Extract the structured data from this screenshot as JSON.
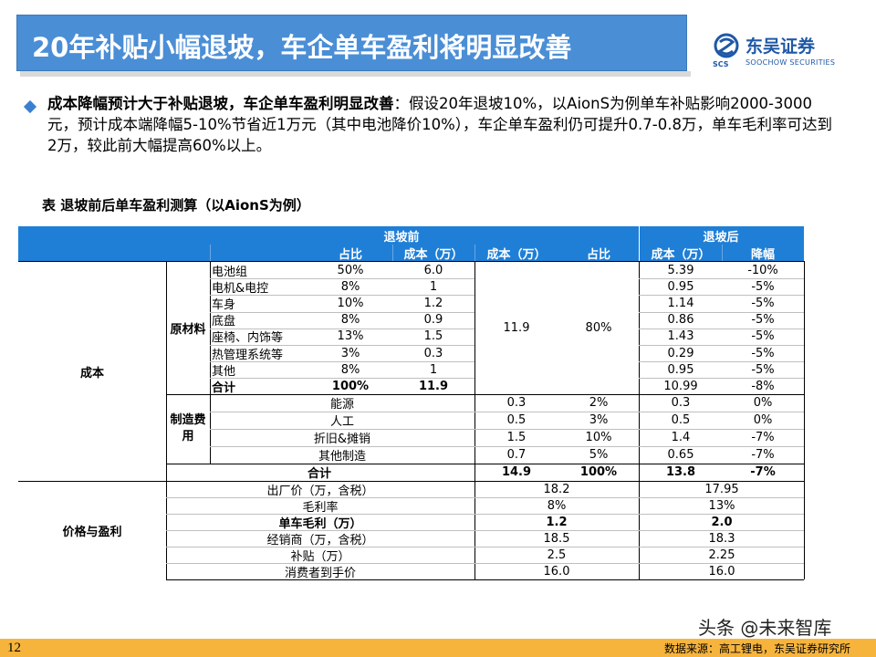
{
  "title": "20年补贴小幅退坡，车企单车盈利将明显改善",
  "logo": {
    "cn": "东吴证券",
    "en": "SOOCHOW SECURITIES",
    "abbr": "SCS"
  },
  "paragraph": {
    "bold": "成本降幅预计大于补贴退坡，车企单车盈利明显改善",
    "text": "：假设20年退坡10%，以AionS为例单车补贴影响2000-3000元，预计成本端降幅5-10%节省近1万元（其中电池降价10%），车企单车盈利仍可提升0.7-0.8万，单车毛利率可达到2万，较此前大幅提高60%以上。"
  },
  "table_caption": "表  退坡前后单车盈利测算（以AionS为例）",
  "table": {
    "header": {
      "before": "退坡前",
      "after": "退坡后",
      "col_share": "占比",
      "col_cost": "成本（万）",
      "col_cost2": "成本（万）",
      "col_share2": "占比",
      "col_cost_after": "成本（万）",
      "col_drop": "降幅"
    },
    "group_cost": "成本",
    "group_price": "价格与盈利",
    "sub_raw": "原材料",
    "sub_mfg": "制造费用",
    "raw_rows": [
      {
        "name": "电池组",
        "share": "50%",
        "cost": "6.0",
        "after": "5.39",
        "drop": "-10%"
      },
      {
        "name": "电机&电控",
        "share": "8%",
        "cost": "1",
        "after": "0.95",
        "drop": "-5%"
      },
      {
        "name": "车身",
        "share": "10%",
        "cost": "1.2",
        "after": "1.14",
        "drop": "-5%"
      },
      {
        "name": "底盘",
        "share": "8%",
        "cost": "0.9",
        "after": "0.86",
        "drop": "-5%"
      },
      {
        "name": "座椅、内饰等",
        "share": "13%",
        "cost": "1.5",
        "after": "1.43",
        "drop": "-5%"
      },
      {
        "name": "热管理系统等",
        "share": "3%",
        "cost": "0.3",
        "after": "0.29",
        "drop": "-5%"
      },
      {
        "name": "其他",
        "share": "8%",
        "cost": "1",
        "after": "0.95",
        "drop": "-5%"
      },
      {
        "name": "合计",
        "share": "100%",
        "cost": "11.9",
        "after": "10.99",
        "drop": "-8%"
      }
    ],
    "raw_merged": {
      "cost": "11.9",
      "share": "80%"
    },
    "mfg_rows": [
      {
        "name": "能源",
        "cost": "0.3",
        "share": "2%",
        "after": "0.3",
        "drop": "0%"
      },
      {
        "name": "人工",
        "cost": "0.5",
        "share": "3%",
        "after": "0.5",
        "drop": "0%"
      },
      {
        "name": "折旧&摊销",
        "cost": "1.5",
        "share": "10%",
        "after": "1.4",
        "drop": "-7%"
      },
      {
        "name": "其他制造",
        "cost": "0.7",
        "share": "5%",
        "after": "0.65",
        "drop": "-7%"
      }
    ],
    "total_row": {
      "name": "合计",
      "cost": "14.9",
      "share": "100%",
      "after": "13.8",
      "drop": "-7%"
    },
    "price_rows": [
      {
        "name": "出厂价（万，含税）",
        "before": "18.2",
        "after": "17.95"
      },
      {
        "name": "毛利率",
        "before": "8%",
        "after": "13%"
      },
      {
        "name": "单车毛利（万）",
        "before": "1.2",
        "after": "2.0"
      },
      {
        "name": "经销商（万，含税）",
        "before": "18.5",
        "after": "18.3"
      },
      {
        "name": "补贴（万）",
        "before": "2.5",
        "after": "2.25"
      },
      {
        "name": "消费者到手价",
        "before": "16.0",
        "after": "16.0"
      }
    ]
  },
  "watermark": "头条 @未来智库",
  "footer": {
    "page": "12",
    "source": "数据来源：高工锂电，东吴证券研究所"
  },
  "colors": {
    "title_bg": "#4a8ed6",
    "header_bg": "#1f7fd6",
    "footer_bg": "#f7b43c",
    "bullet": "#3b7fd0"
  }
}
